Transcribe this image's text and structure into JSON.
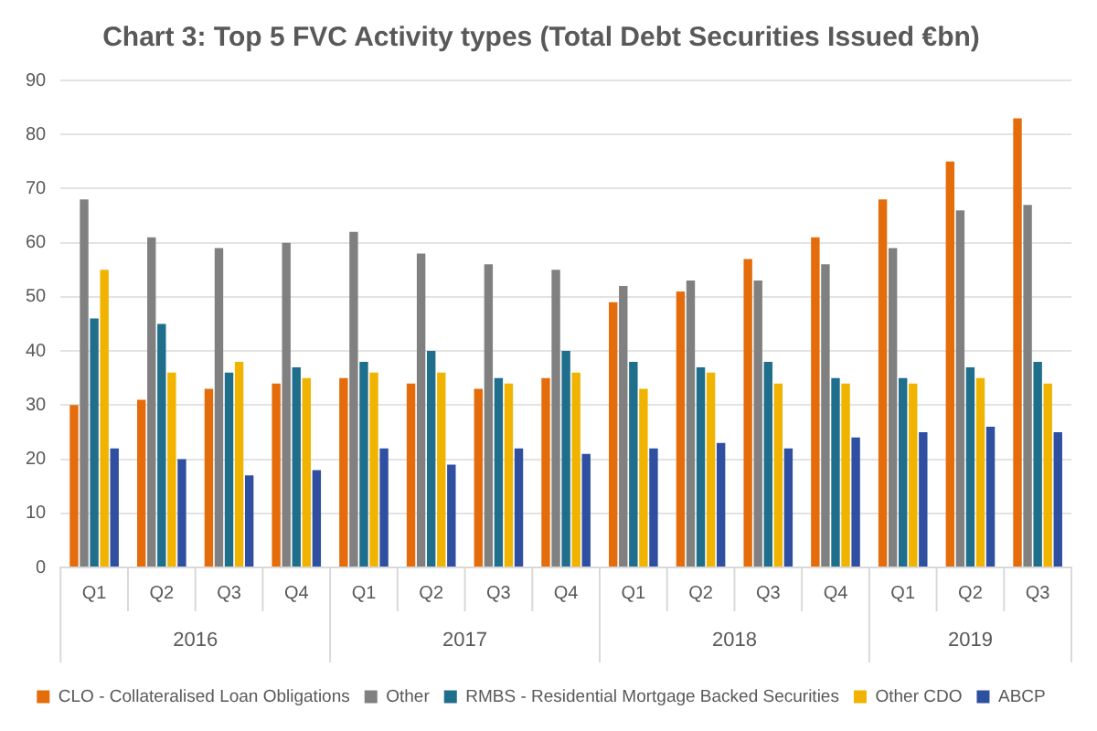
{
  "chart_data": {
    "type": "bar",
    "title": "Chart 3: Top 5 FVC Activity types (Total Debt Securities Issued €bn)",
    "categories": [
      "Q1",
      "Q2",
      "Q3",
      "Q4",
      "Q1",
      "Q2",
      "Q3",
      "Q4",
      "Q1",
      "Q2",
      "Q3",
      "Q4",
      "Q1",
      "Q2",
      "Q3"
    ],
    "annotations": [
      "2016",
      "2017",
      "2018",
      "2019"
    ],
    "series": [
      {
        "name": "CLO - Collateralised Loan Obligations",
        "color": "#e46c0a",
        "values": [
          30,
          31,
          33,
          34,
          35,
          34,
          33,
          35,
          49,
          51,
          57,
          61,
          68,
          75,
          83
        ]
      },
      {
        "name": "Other",
        "color": "#808080",
        "values": [
          68,
          61,
          59,
          60,
          62,
          58,
          56,
          55,
          52,
          53,
          53,
          56,
          59,
          66,
          67
        ]
      },
      {
        "name": "RMBS - Residential Mortgage Backed Securities",
        "color": "#1f6e8c",
        "values": [
          46,
          45,
          36,
          37,
          38,
          40,
          35,
          40,
          38,
          37,
          38,
          35,
          35,
          37,
          38
        ]
      },
      {
        "name": "Other CDO",
        "color": "#f0b400",
        "values": [
          55,
          36,
          38,
          35,
          36,
          36,
          34,
          36,
          33,
          36,
          34,
          34,
          34,
          35,
          34
        ]
      },
      {
        "name": "ABCP",
        "color": "#2f4fa0",
        "values": [
          22,
          20,
          17,
          18,
          22,
          19,
          22,
          21,
          22,
          23,
          22,
          24,
          25,
          26,
          25
        ]
      }
    ],
    "ylim": [
      0,
      90
    ],
    "yticks": [
      0,
      10,
      20,
      30,
      40,
      50,
      60,
      70,
      80,
      90
    ],
    "grid": "y",
    "legend": "bottom"
  }
}
